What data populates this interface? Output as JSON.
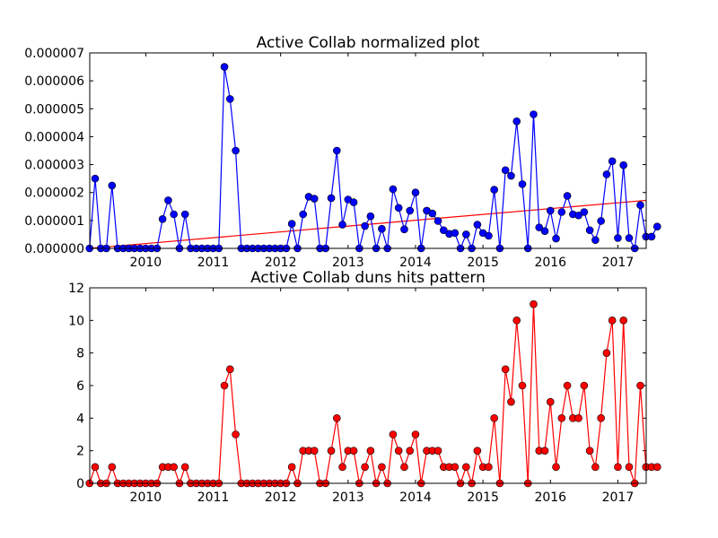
{
  "chart_data": [
    {
      "type": "line",
      "title": "Active Collab normalized plot",
      "xlabel": "",
      "ylabel": "",
      "xlim": [
        2009.17,
        2017.42
      ],
      "ylim": [
        0,
        7e-06
      ],
      "yticks": [
        "0.000000",
        "0.000001",
        "0.000002",
        "0.000003",
        "0.000004",
        "0.000005",
        "0.000006",
        "0.000007"
      ],
      "xticks": [
        "2010",
        "2011",
        "2012",
        "2013",
        "2014",
        "2015",
        "2016",
        "2017"
      ],
      "grid": false,
      "line_color": "#0000ff",
      "x_start": "2009-03",
      "series": [
        {
          "values": [
            0,
            2.5e-06,
            0,
            0,
            2.25e-06,
            0,
            0,
            0,
            0,
            0,
            0,
            0,
            0,
            1.05e-06,
            1.72e-06,
            1.22e-06,
            0,
            1.22e-06,
            0,
            0,
            0,
            0,
            0,
            0,
            6.5e-06,
            5.35e-06,
            3.5e-06,
            0,
            0,
            0,
            0,
            0,
            0,
            0,
            0,
            0,
            8.8e-07,
            0,
            1.22e-06,
            1.85e-06,
            1.78e-06,
            0,
            0,
            1.8e-06,
            3.5e-06,
            8.5e-07,
            1.75e-06,
            1.65e-06,
            0,
            8e-07,
            1.15e-06,
            0,
            7e-07,
            0,
            2.12e-06,
            1.45e-06,
            6.8e-07,
            1.35e-06,
            2e-06,
            0,
            1.35e-06,
            1.25e-06,
            9.8e-07,
            6.5e-07,
            5.2e-07,
            5.5e-07,
            0,
            5e-07,
            0,
            8.5e-07,
            5.5e-07,
            4.5e-07,
            2.1e-06,
            0,
            2.8e-06,
            2.6e-06,
            4.55e-06,
            2.3e-06,
            0,
            4.8e-06,
            7.5e-07,
            6.2e-07,
            1.35e-06,
            3.5e-07,
            1.3e-06,
            1.88e-06,
            1.22e-06,
            1.18e-06,
            1.3e-06,
            6.5e-07,
            3e-07,
            9.8e-07,
            2.65e-06,
            3.12e-06,
            3.7e-07,
            2.98e-06,
            3.7e-07,
            0,
            1.55e-06,
            4.2e-07,
            4.2e-07,
            7.8e-07
          ]
        }
      ],
      "trend_line": {
        "color": "#ff0000",
        "x": [
          2009.17,
          2017.42
        ],
        "y": [
          0,
          1.72e-06
        ]
      }
    },
    {
      "type": "line",
      "title": "Active Collab duns hits pattern",
      "xlabel": "",
      "ylabel": "",
      "xlim": [
        2009.17,
        2017.42
      ],
      "ylim": [
        0,
        12
      ],
      "yticks": [
        "0",
        "2",
        "4",
        "6",
        "8",
        "10",
        "12"
      ],
      "xticks": [
        "2010",
        "2011",
        "2012",
        "2013",
        "2014",
        "2015",
        "2016",
        "2017"
      ],
      "grid": false,
      "line_color": "#ff0000",
      "x_start": "2009-03",
      "series": [
        {
          "values": [
            0,
            1,
            0,
            0,
            1,
            0,
            0,
            0,
            0,
            0,
            0,
            0,
            0,
            1,
            1,
            1,
            0,
            1,
            0,
            0,
            0,
            0,
            0,
            0,
            6,
            7,
            3,
            0,
            0,
            0,
            0,
            0,
            0,
            0,
            0,
            0,
            1,
            0,
            2,
            2,
            2,
            0,
            0,
            2,
            4,
            1,
            2,
            2,
            0,
            1,
            2,
            0,
            1,
            0,
            3,
            2,
            1,
            2,
            3,
            0,
            2,
            2,
            2,
            1,
            1,
            1,
            0,
            1,
            0,
            2,
            1,
            1,
            4,
            0,
            7,
            5,
            10,
            6,
            0,
            11,
            2,
            2,
            5,
            1,
            4,
            6,
            4,
            4,
            6,
            2,
            1,
            4,
            8,
            10,
            1,
            10,
            1,
            0,
            6,
            1,
            1,
            1
          ]
        }
      ]
    }
  ]
}
